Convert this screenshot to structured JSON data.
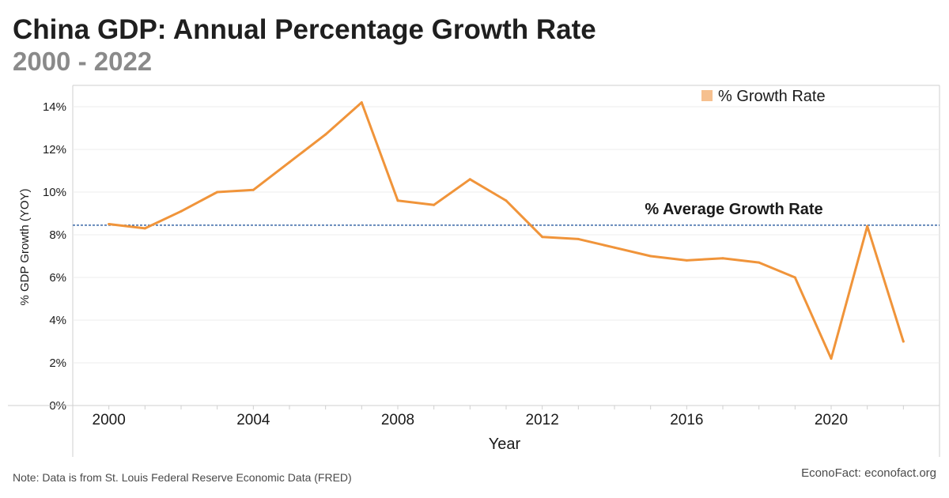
{
  "header": {
    "title": "China GDP: Annual Percentage Growth Rate",
    "subtitle": "2000 - 2022"
  },
  "footer": {
    "note": "Note: Data is from St. Louis Federal Reserve Economic Data (FRED)",
    "source": "EconoFact: econofact.org"
  },
  "colors": {
    "line": "#f0943a",
    "legend_swatch": "#f6c08f",
    "average_line": "#3a68a8",
    "grid": "#ececec",
    "axis": "#cfcfcf"
  },
  "chart_data": {
    "type": "line",
    "title": "China GDP: Annual Percentage Growth Rate",
    "subtitle": "2000 - 2022",
    "xlabel": "Year",
    "ylabel": "% GDP Growth (YOY)",
    "x": [
      2000,
      2001,
      2002,
      2003,
      2004,
      2005,
      2006,
      2007,
      2008,
      2009,
      2010,
      2011,
      2012,
      2013,
      2014,
      2015,
      2016,
      2017,
      2018,
      2019,
      2020,
      2021,
      2022
    ],
    "series": [
      {
        "name": "% Growth Rate",
        "values": [
          8.5,
          8.3,
          9.1,
          10.0,
          10.1,
          11.4,
          12.7,
          14.2,
          9.6,
          9.4,
          10.6,
          9.6,
          7.9,
          7.8,
          7.4,
          7.0,
          6.8,
          6.9,
          6.7,
          6.0,
          2.2,
          8.4,
          3.0
        ]
      }
    ],
    "reference_lines": [
      {
        "label": "% Average Growth Rate",
        "value": 8.45
      }
    ],
    "xticks": [
      2000,
      2004,
      2008,
      2012,
      2016,
      2020
    ],
    "yticks": [
      0,
      2,
      4,
      6,
      8,
      10,
      12,
      14
    ],
    "ytick_format": "%",
    "xlim": [
      1999,
      2023
    ],
    "ylim": [
      0,
      15
    ],
    "grid": true,
    "legend_position": "top-right"
  }
}
